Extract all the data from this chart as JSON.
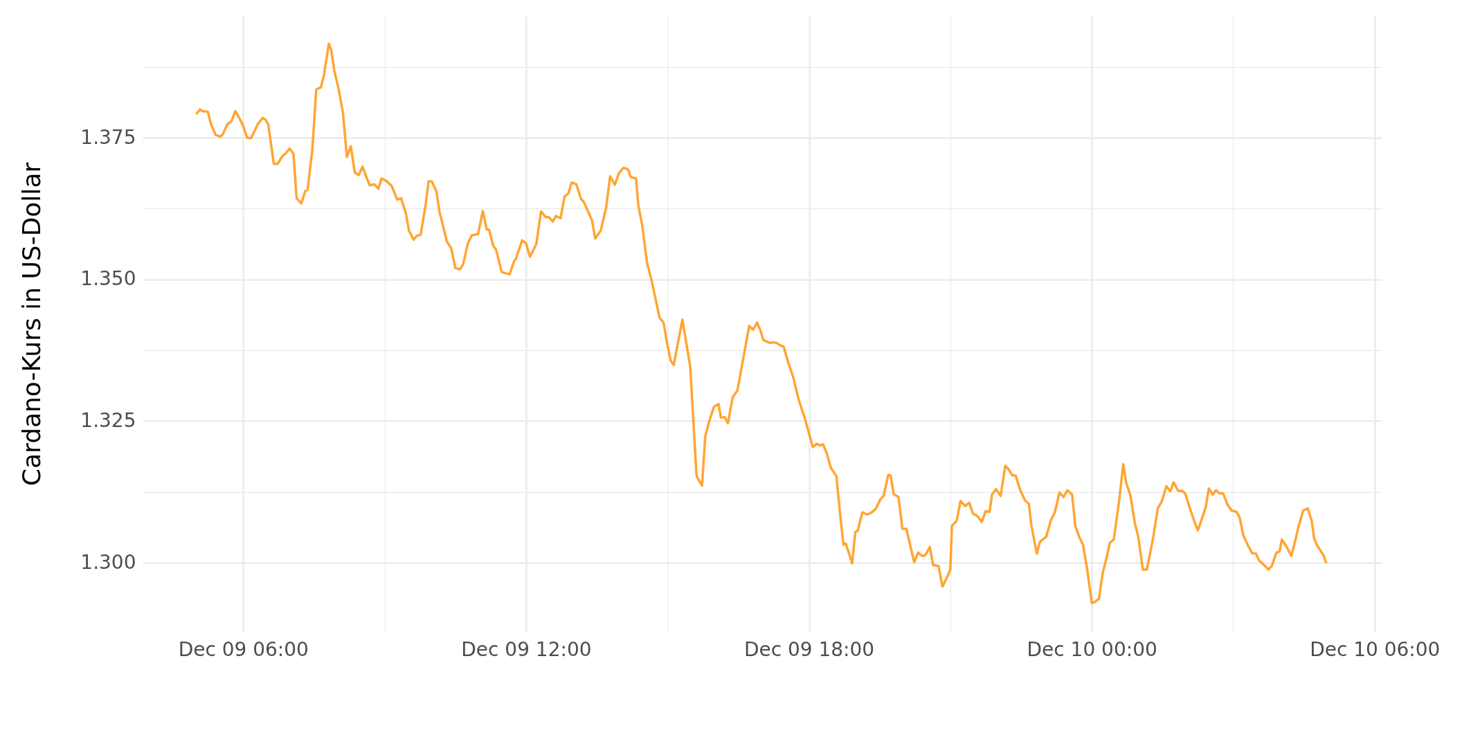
{
  "chart_data": {
    "type": "line",
    "ylabel": "Cardano-Kurs in US-Dollar",
    "x": [
      "--12-09T05:01",
      "--12-09T05:05",
      "--12-09T05:08",
      "--12-09T05:15",
      "--12-09T05:19",
      "--12-09T05:25",
      "--12-09T05:31",
      "--12-09T05:34",
      "--12-09T05:40",
      "--12-09T05:45",
      "--12-09T05:50",
      "--12-09T05:55",
      "--12-09T06:00",
      "--12-09T06:05",
      "--12-09T06:10",
      "--12-09T06:19",
      "--12-09T06:25",
      "--12-09T06:29",
      "--12-09T06:32",
      "--12-09T06:39",
      "--12-09T06:44",
      "--12-09T06:50",
      "--12-09T06:54",
      "--12-09T06:59",
      "--12-09T07:04",
      "--12-09T07:08",
      "--12-09T07:14",
      "--12-09T07:19",
      "--12-09T07:22",
      "--12-09T07:28",
      "--12-09T07:33",
      "--12-09T07:39",
      "--12-09T07:43",
      "--12-09T07:49",
      "--12-09T07:52",
      "--12-09T07:56",
      "--12-09T08:01",
      "--12-09T08:07",
      "--12-09T08:12",
      "--12-09T08:17",
      "--12-09T08:22",
      "--12-09T08:27",
      "--12-09T08:32",
      "--12-09T08:37",
      "--12-09T08:41",
      "--12-09T08:47",
      "--12-09T08:52",
      "--12-09T08:56",
      "--12-09T09:02",
      "--12-09T09:09",
      "--12-09T09:16",
      "--12-09T09:21",
      "--12-09T09:27",
      "--12-09T09:31",
      "--12-09T09:37",
      "--12-09T09:41",
      "--12-09T09:46",
      "--12-09T09:52",
      "--12-09T09:56",
      "--12-09T10:00",
      "--12-09T10:06",
      "--12-09T10:10",
      "--12-09T10:14",
      "--12-09T10:19",
      "--12-09T10:25",
      "--12-09T10:30",
      "--12-09T10:36",
      "--12-09T10:40",
      "--12-09T10:46",
      "--12-09T10:51",
      "--12-09T10:59",
      "--12-09T11:05",
      "--12-09T11:10",
      "--12-09T11:13",
      "--12-09T11:18",
      "--12-09T11:22",
      "--12-09T11:29",
      "--12-09T11:39",
      "--12-09T11:45",
      "--12-09T11:47",
      "--12-09T11:55",
      "--12-09T12:00",
      "--12-09T12:05",
      "--12-09T12:13",
      "--12-09T12:19",
      "--12-09T12:25",
      "--12-09T12:29",
      "--12-09T12:34",
      "--12-09T12:38",
      "--12-09T12:44",
      "--12-09T12:49",
      "--12-09T12:54",
      "--12-09T12:58",
      "--12-09T13:04",
      "--12-09T13:10",
      "--12-09T13:13",
      "--12-09T13:19",
      "--12-09T13:24",
      "--12-09T13:28",
      "--12-09T13:35",
      "--12-09T13:42",
      "--12-09T13:47",
      "--12-09T13:53",
      "--12-09T13:58",
      "--12-09T14:04",
      "--12-09T14:10",
      "--12-09T14:13",
      "--12-09T14:20",
      "--12-09T14:23",
      "--12-09T14:28",
      "--12-09T14:34",
      "--12-09T14:40",
      "--12-09T14:50",
      "--12-09T14:55",
      "--12-09T14:59",
      "--12-09T15:04",
      "--12-09T15:08",
      "--12-09T15:14",
      "--12-09T15:19",
      "--12-09T15:29",
      "--12-09T15:37",
      "--12-09T15:44",
      "--12-09T15:48",
      "--12-09T15:53",
      "--12-09T15:59",
      "--12-09T16:05",
      "--12-09T16:08",
      "--12-09T16:13",
      "--12-09T16:17",
      "--12-09T16:23",
      "--12-09T16:29",
      "--12-09T16:37",
      "--12-09T16:44",
      "--12-09T16:49",
      "--12-09T16:54",
      "--12-09T16:58",
      "--12-09T17:02",
      "--12-09T17:10",
      "--12-09T17:14",
      "--12-09T17:19",
      "--12-09T17:23",
      "--12-09T17:28",
      "--12-09T17:34",
      "--12-09T17:40",
      "--12-09T17:46",
      "--12-09T17:50",
      "--12-09T17:55",
      "--12-09T18:01",
      "--12-09T18:05",
      "--12-09T18:10",
      "--12-09T18:14",
      "--12-09T18:18",
      "--12-09T18:23",
      "--12-09T18:28",
      "--12-09T18:35",
      "--12-09T18:40",
      "--12-09T18:44",
      "--12-09T18:47",
      "--12-09T18:55",
      "--12-09T18:59",
      "--12-09T19:02",
      "--12-09T19:08",
      "--12-09T19:14",
      "--12-09T19:19",
      "--12-09T19:25",
      "--12-09T19:31",
      "--12-09T19:35",
      "--12-09T19:41",
      "--12-09T19:44",
      "--12-09T19:48",
      "--12-09T19:54",
      "--12-09T19:59",
      "--12-09T20:04",
      "--12-09T20:14",
      "--12-09T20:19",
      "--12-09T20:24",
      "--12-09T20:28",
      "--12-09T20:34",
      "--12-09T20:38",
      "--12-09T20:45",
      "--12-09T20:50",
      "--12-09T20:55",
      "--12-09T21:00",
      "--12-09T21:02",
      "--12-09T21:08",
      "--12-09T21:13",
      "--12-09T21:19",
      "--12-09T21:24",
      "--12-09T21:29",
      "--12-09T21:34",
      "--12-09T21:40",
      "--12-09T21:45",
      "--12-09T21:50",
      "--12-09T21:53",
      "--12-09T21:58",
      "--12-09T22:04",
      "--12-09T22:10",
      "--12-09T22:14",
      "--12-09T22:19",
      "--12-09T22:23",
      "--12-09T22:29",
      "--12-09T22:35",
      "--12-09T22:40",
      "--12-09T22:43",
      "--12-09T22:50",
      "--12-09T22:54",
      "--12-09T23:02",
      "--12-09T23:08",
      "--12-09T23:13",
      "--12-09T23:19",
      "--12-09T23:24",
      "--12-09T23:29",
      "--12-09T23:35",
      "--12-09T23:39",
      "--12-09T23:44",
      "--12-09T23:49",
      "--12-09T23:54",
      "--12-10T00:00",
      "--12-10T00:04",
      "--12-10T00:09",
      "--12-10T00:14",
      "--12-10T00:19",
      "--12-10T00:23",
      "--12-10T00:28",
      "--12-10T00:35",
      "--12-10T00:40",
      "--12-10T00:44",
      "--12-10T00:49",
      "--12-10T00:55",
      "--12-10T00:59",
      "--12-10T01:05",
      "--12-10T01:10",
      "--12-10T01:13",
      "--12-10T01:18",
      "--12-10T01:24",
      "--12-10T01:29",
      "--12-10T01:35",
      "--12-10T01:40",
      "--12-10T01:44",
      "--12-10T01:50",
      "--12-10T01:55",
      "--12-10T01:59",
      "--12-10T02:04",
      "--12-10T02:10",
      "--12-10T02:15",
      "--12-10T02:19",
      "--12-10T02:25",
      "--12-10T02:29",
      "--12-10T02:34",
      "--12-10T02:38",
      "--12-10T02:43",
      "--12-10T02:47",
      "--12-10T02:53",
      "--12-10T02:58",
      "--12-10T03:04",
      "--12-10T03:08",
      "--12-10T03:13",
      "--12-10T03:19",
      "--12-10T03:24",
      "--12-10T03:29",
      "--12-10T03:33",
      "--12-10T03:40",
      "--12-10T03:45",
      "--12-10T03:49",
      "--12-10T03:55",
      "--12-10T03:59",
      "--12-10T04:02",
      "--12-10T04:08",
      "--12-10T04:14",
      "--12-10T04:19",
      "--12-10T04:23",
      "--12-10T04:29",
      "--12-10T04:35",
      "--12-10T04:40",
      "--12-10T04:43",
      "--12-10T04:47",
      "--12-10T04:55",
      "--12-10T04:58"
    ],
    "series": [
      {
        "color": "#ffa533",
        "values": [
          1.3793,
          1.38,
          1.3797,
          1.3796,
          1.3774,
          1.3755,
          1.3752,
          1.3756,
          1.3774,
          1.3779,
          1.3797,
          1.3785,
          1.3771,
          1.375,
          1.3749,
          1.3775,
          1.3785,
          1.3781,
          1.3773,
          1.3704,
          1.3704,
          1.3718,
          1.3722,
          1.3731,
          1.3722,
          1.3643,
          1.3634,
          1.3656,
          1.3658,
          1.3729,
          1.3835,
          1.3839,
          1.3862,
          1.3916,
          1.3905,
          1.3868,
          1.3839,
          1.3794,
          1.3716,
          1.3735,
          1.3689,
          1.3684,
          1.3699,
          1.368,
          1.3666,
          1.3668,
          1.366,
          1.3678,
          1.3674,
          1.3665,
          1.3641,
          1.3643,
          1.3617,
          1.3586,
          1.357,
          1.3577,
          1.3579,
          1.363,
          1.3673,
          1.3673,
          1.3655,
          1.3618,
          1.3597,
          1.3568,
          1.3554,
          1.352,
          1.3518,
          1.3527,
          1.3564,
          1.3578,
          1.358,
          1.3621,
          1.3588,
          1.3588,
          1.356,
          1.3552,
          1.3513,
          1.3509,
          1.3533,
          1.3536,
          1.3569,
          1.3564,
          1.354,
          1.3562,
          1.362,
          1.361,
          1.361,
          1.3602,
          1.3612,
          1.3608,
          1.3646,
          1.3652,
          1.3671,
          1.3668,
          1.3642,
          1.3638,
          1.362,
          1.3604,
          1.3572,
          1.3586,
          1.3627,
          1.3682,
          1.3667,
          1.3687,
          1.3697,
          1.3694,
          1.3681,
          1.3678,
          1.363,
          1.3594,
          1.3529,
          1.3497,
          1.3432,
          1.3424,
          1.3391,
          1.3357,
          1.3349,
          1.3393,
          1.3429,
          1.3346,
          1.3153,
          1.3136,
          1.3222,
          1.3249,
          1.3275,
          1.328,
          1.3256,
          1.3257,
          1.3246,
          1.3292,
          1.3304,
          1.3365,
          1.3418,
          1.3411,
          1.3424,
          1.3411,
          1.3393,
          1.3388,
          1.3389,
          1.3388,
          1.3384,
          1.3381,
          1.3352,
          1.3328,
          1.3293,
          1.3275,
          1.3254,
          1.3224,
          1.3204,
          1.321,
          1.3207,
          1.3209,
          1.3192,
          1.3167,
          1.3153,
          1.3082,
          1.3032,
          1.3034,
          1.2999,
          1.3054,
          1.3056,
          1.3089,
          1.3085,
          1.3088,
          1.3095,
          1.3112,
          1.3118,
          1.3155,
          1.3154,
          1.3121,
          1.3116,
          1.306,
          1.306,
          1.3001,
          1.3018,
          1.3012,
          1.3013,
          1.3028,
          1.2996,
          1.2994,
          1.2958,
          1.2972,
          1.2988,
          1.3065,
          1.3074,
          1.3109,
          1.31,
          1.3106,
          1.3086,
          1.3083,
          1.3072,
          1.3091,
          1.309,
          1.312,
          1.313,
          1.3118,
          1.3171,
          1.3165,
          1.3154,
          1.3154,
          1.3128,
          1.311,
          1.3104,
          1.3067,
          1.3016,
          1.3037,
          1.3046,
          1.3075,
          1.3089,
          1.3124,
          1.3116,
          1.3128,
          1.312,
          1.3065,
          1.3046,
          1.3031,
          1.299,
          1.2929,
          1.2931,
          1.2936,
          1.2982,
          1.301,
          1.3035,
          1.3041,
          1.3111,
          1.3174,
          1.314,
          1.312,
          1.3069,
          1.3047,
          1.2988,
          1.2988,
          1.3008,
          1.3043,
          1.3096,
          1.3108,
          1.3135,
          1.3126,
          1.3142,
          1.3127,
          1.3127,
          1.3122,
          1.31,
          1.3075,
          1.3057,
          1.3073,
          1.3098,
          1.3131,
          1.312,
          1.3128,
          1.3122,
          1.3123,
          1.3102,
          1.3092,
          1.309,
          1.3081,
          1.3048,
          1.303,
          1.3017,
          1.3016,
          1.3004,
          1.2995,
          1.2988,
          1.2994,
          1.3018,
          1.302,
          1.3041,
          1.3028,
          1.3012,
          1.3039,
          1.3063,
          1.3092,
          1.3096,
          1.3073,
          1.3043,
          1.303,
          1.3013,
          1.3001
        ]
      }
    ],
    "xlim": [
      "--12-09T03:52",
      "--12-10T06:09"
    ],
    "xticks": [
      {
        "value": "--12-09T06:00",
        "label": "Dec 09 06:00"
      },
      {
        "value": "--12-09T09:00",
        "label": null
      },
      {
        "value": "--12-09T12:00",
        "label": "Dec 09 12:00"
      },
      {
        "value": "--12-09T15:00",
        "label": null
      },
      {
        "value": "--12-09T18:00",
        "label": "Dec 09 18:00"
      },
      {
        "value": "--12-09T21:00",
        "label": null
      },
      {
        "value": "--12-10T00:00",
        "label": "Dec 10 00:00"
      },
      {
        "value": "--12-10T03:00",
        "label": null
      },
      {
        "value": "--12-10T06:00",
        "label": "Dec 10 06:00"
      }
    ],
    "ylim": [
      1.2878,
      1.3965
    ],
    "yticks": [
      {
        "value": 1.3,
        "label": "1.300"
      },
      {
        "value": 1.3125,
        "label": null
      },
      {
        "value": 1.325,
        "label": "1.325"
      },
      {
        "value": 1.3375,
        "label": null
      },
      {
        "value": 1.35,
        "label": "1.350"
      },
      {
        "value": 1.3625,
        "label": null
      },
      {
        "value": 1.375,
        "label": "1.375"
      },
      {
        "value": 1.3875,
        "label": null
      }
    ],
    "grid": true,
    "marker": "none",
    "line_style": "solid"
  }
}
